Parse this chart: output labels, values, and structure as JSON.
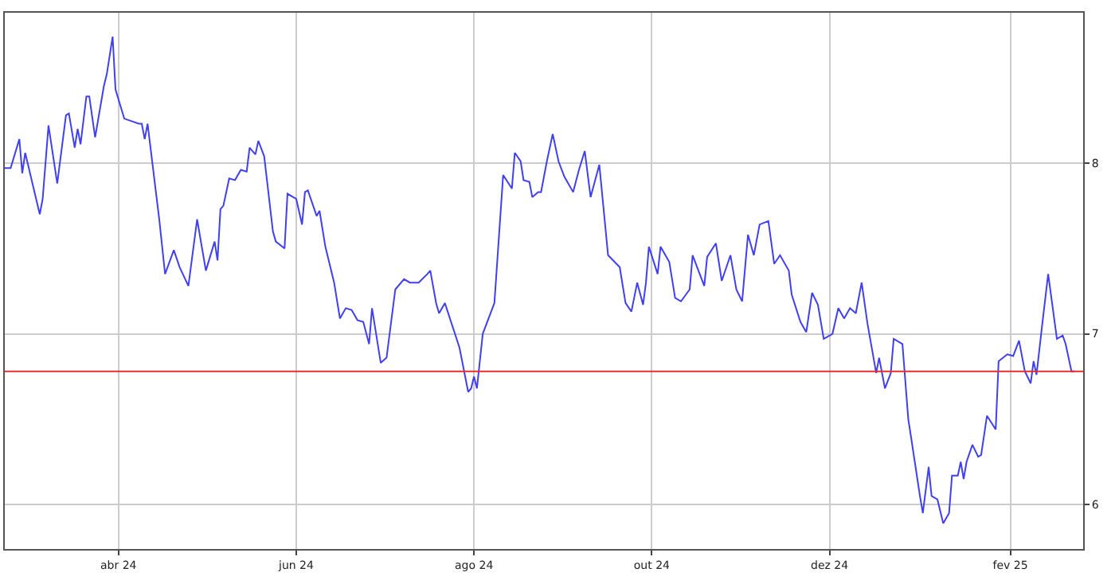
{
  "chart_data": {
    "type": "line",
    "xlim": [
      "2024-02-22",
      "2025-02-26"
    ],
    "ylim": [
      5.74,
      8.88
    ],
    "yticks": [
      6,
      7,
      8
    ],
    "grid": true,
    "line_style": "solid",
    "xticks": [
      {
        "value": "2024-04-01",
        "label": "abr 24"
      },
      {
        "value": "2024-06-01",
        "label": "jun 24"
      },
      {
        "value": "2024-08-01",
        "label": "ago 24"
      },
      {
        "value": "2024-10-01",
        "label": "out 24"
      },
      {
        "value": "2024-12-01",
        "label": "dez 24"
      },
      {
        "value": "2025-02-01",
        "label": "fev 25"
      }
    ],
    "ref_lines": [
      {
        "axis": "y",
        "value": 6.78,
        "color": "#e03030"
      }
    ],
    "x": [
      "2024-02-22",
      "2024-02-24",
      "2024-02-27",
      "2024-02-28",
      "2024-02-29",
      "2024-03-05",
      "2024-03-06",
      "2024-03-08",
      "2024-03-11",
      "2024-03-14",
      "2024-03-15",
      "2024-03-17",
      "2024-03-18",
      "2024-03-19",
      "2024-03-21",
      "2024-03-22",
      "2024-03-24",
      "2024-03-27",
      "2024-03-28",
      "2024-03-30",
      "2024-03-31",
      "2024-04-03",
      "2024-04-08",
      "2024-04-09",
      "2024-04-10",
      "2024-04-11",
      "2024-04-15",
      "2024-04-17",
      "2024-04-20",
      "2024-04-22",
      "2024-04-25",
      "2024-04-28",
      "2024-05-01",
      "2024-05-04",
      "2024-05-05",
      "2024-05-06",
      "2024-05-07",
      "2024-05-09",
      "2024-05-11",
      "2024-05-13",
      "2024-05-15",
      "2024-05-16",
      "2024-05-18",
      "2024-05-19",
      "2024-05-21",
      "2024-05-24",
      "2024-05-25",
      "2024-05-28",
      "2024-05-29",
      "2024-06-01",
      "2024-06-03",
      "2024-06-04",
      "2024-06-05",
      "2024-06-08",
      "2024-06-09",
      "2024-06-11",
      "2024-06-14",
      "2024-06-16",
      "2024-06-18",
      "2024-06-20",
      "2024-06-22",
      "2024-06-24",
      "2024-06-26",
      "2024-06-27",
      "2024-06-30",
      "2024-07-02",
      "2024-07-05",
      "2024-07-08",
      "2024-07-10",
      "2024-07-13",
      "2024-07-16",
      "2024-07-17",
      "2024-07-19",
      "2024-07-20",
      "2024-07-22",
      "2024-07-27",
      "2024-07-30",
      "2024-07-31",
      "2024-08-01",
      "2024-08-02",
      "2024-08-04",
      "2024-08-06",
      "2024-08-08",
      "2024-08-11",
      "2024-08-14",
      "2024-08-15",
      "2024-08-17",
      "2024-08-18",
      "2024-08-20",
      "2024-08-21",
      "2024-08-23",
      "2024-08-24",
      "2024-08-26",
      "2024-08-28",
      "2024-08-30",
      "2024-09-01",
      "2024-09-04",
      "2024-09-06",
      "2024-09-08",
      "2024-09-10",
      "2024-09-13",
      "2024-09-16",
      "2024-09-20",
      "2024-09-22",
      "2024-09-24",
      "2024-09-26",
      "2024-09-28",
      "2024-09-29",
      "2024-09-30",
      "2024-10-03",
      "2024-10-04",
      "2024-10-07",
      "2024-10-09",
      "2024-10-11",
      "2024-10-14",
      "2024-10-15",
      "2024-10-19",
      "2024-10-20",
      "2024-10-23",
      "2024-10-25",
      "2024-10-28",
      "2024-10-30",
      "2024-11-01",
      "2024-11-03",
      "2024-11-05",
      "2024-11-07",
      "2024-11-10",
      "2024-11-12",
      "2024-11-14",
      "2024-11-17",
      "2024-11-18",
      "2024-11-21",
      "2024-11-23",
      "2024-11-25",
      "2024-11-27",
      "2024-11-29",
      "2024-12-02",
      "2024-12-04",
      "2024-12-06",
      "2024-12-08",
      "2024-12-10",
      "2024-12-12",
      "2024-12-14",
      "2024-12-17",
      "2024-12-18",
      "2024-12-20",
      "2024-12-22",
      "2024-12-23",
      "2024-12-26",
      "2024-12-28",
      "2024-12-29",
      "2025-01-01",
      "2025-01-02",
      "2025-01-04",
      "2025-01-05",
      "2025-01-07",
      "2025-01-09",
      "2025-01-11",
      "2025-01-12",
      "2025-01-14",
      "2025-01-15",
      "2025-01-16",
      "2025-01-17",
      "2025-01-19",
      "2025-01-21",
      "2025-01-22",
      "2025-01-24",
      "2025-01-27",
      "2025-01-28",
      "2025-01-31",
      "2025-02-02",
      "2025-02-04",
      "2025-02-06",
      "2025-02-08",
      "2025-02-09",
      "2025-02-10",
      "2025-02-12",
      "2025-02-14",
      "2025-02-17",
      "2025-02-19",
      "2025-02-20",
      "2025-02-22",
      "2025-02-23"
    ],
    "series": [
      {
        "color": "#4040f0",
        "values": [
          7.97,
          7.97,
          8.14,
          7.94,
          8.06,
          7.7,
          7.79,
          8.22,
          7.88,
          8.28,
          8.29,
          8.09,
          8.2,
          8.11,
          8.39,
          8.39,
          8.15,
          8.45,
          8.52,
          8.74,
          8.43,
          8.26,
          8.23,
          8.23,
          8.14,
          8.23,
          7.67,
          7.35,
          7.49,
          7.39,
          7.28,
          7.67,
          7.37,
          7.54,
          7.43,
          7.73,
          7.75,
          7.91,
          7.9,
          7.96,
          7.95,
          8.09,
          8.05,
          8.13,
          8.04,
          7.6,
          7.54,
          7.5,
          7.82,
          7.79,
          7.64,
          7.83,
          7.84,
          7.69,
          7.72,
          7.51,
          7.3,
          7.09,
          7.15,
          7.14,
          7.08,
          7.07,
          6.94,
          7.15,
          6.83,
          6.86,
          7.26,
          7.32,
          7.3,
          7.3,
          7.35,
          7.37,
          7.18,
          7.12,
          7.18,
          6.92,
          6.66,
          6.68,
          6.75,
          6.68,
          7.0,
          7.09,
          7.18,
          7.93,
          7.85,
          8.06,
          8.01,
          7.9,
          7.89,
          7.8,
          7.83,
          7.83,
          8.01,
          8.17,
          8.01,
          7.92,
          7.83,
          7.96,
          8.07,
          7.8,
          7.99,
          7.46,
          7.39,
          7.18,
          7.13,
          7.3,
          7.17,
          7.3,
          7.51,
          7.35,
          7.51,
          7.42,
          7.21,
          7.19,
          7.26,
          7.46,
          7.28,
          7.45,
          7.53,
          7.31,
          7.46,
          7.26,
          7.19,
          7.58,
          7.46,
          7.64,
          7.66,
          7.41,
          7.46,
          7.37,
          7.23,
          7.07,
          7.01,
          7.24,
          7.17,
          6.97,
          7.0,
          7.15,
          7.09,
          7.15,
          7.12,
          7.3,
          7.06,
          6.77,
          6.86,
          6.68,
          6.77,
          6.97,
          6.94,
          6.5,
          6.39,
          6.05,
          5.95,
          6.22,
          6.05,
          6.03,
          5.89,
          5.95,
          6.17,
          6.17,
          6.25,
          6.15,
          6.25,
          6.35,
          6.28,
          6.29,
          6.52,
          6.44,
          6.84,
          6.88,
          6.87,
          6.96,
          6.78,
          6.71,
          6.84,
          6.76,
          7.06,
          7.35,
          6.97,
          6.99,
          6.94,
          6.78,
          6.78
        ]
      }
    ]
  }
}
